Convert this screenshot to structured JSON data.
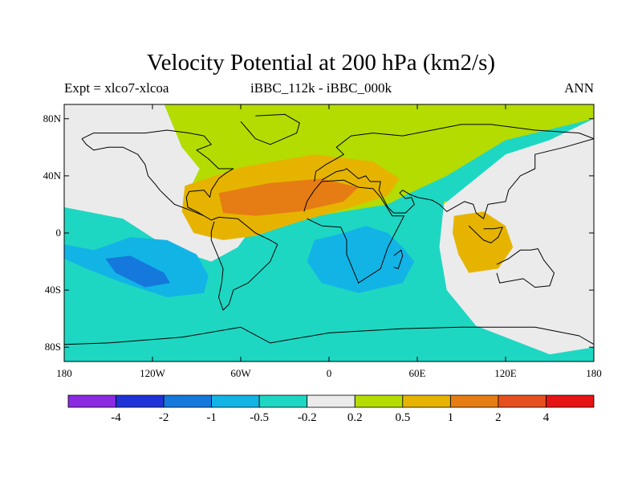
{
  "figure": {
    "title": "Velocity Potential at 200 hPa (km2/s)",
    "left_subtitle": "Expt = xlco7-xlcoa",
    "center_subtitle": "iBBC_112k - iBBC_000k",
    "right_subtitle": "ANN"
  },
  "axes": {
    "y_ticks": [
      {
        "label": "80N",
        "lat": 80
      },
      {
        "label": "40N",
        "lat": 40
      },
      {
        "label": "0",
        "lat": 0
      },
      {
        "label": "40S",
        "lat": -40
      },
      {
        "label": "80S",
        "lat": -80
      }
    ],
    "x_ticks": [
      {
        "label": "180",
        "lon": -180
      },
      {
        "label": "120W",
        "lon": -120
      },
      {
        "label": "60W",
        "lon": -60
      },
      {
        "label": "0",
        "lon": 0
      },
      {
        "label": "60E",
        "lon": 60
      },
      {
        "label": "120E",
        "lon": 120
      },
      {
        "label": "180",
        "lon": 180
      }
    ]
  },
  "colorbar": {
    "colors": [
      "#8a2be2",
      "#1e32d8",
      "#1478dc",
      "#12b4e6",
      "#1ed7c2",
      "#ebebeb",
      "#b4dc00",
      "#e6b400",
      "#e67d14",
      "#e6501e",
      "#e61414"
    ],
    "labels": [
      "-4",
      "-2",
      "-1",
      "-0.5",
      "-0.2",
      "0.2",
      "0.5",
      "1",
      "2",
      "4"
    ]
  },
  "map_data": {
    "bounds": {
      "lon_min": -180,
      "lon_max": 180,
      "lat_min": -90,
      "lat_max": 90
    },
    "regions": [
      {
        "name": "neutral-north-pacific",
        "level": 0.0,
        "color": "#ebebeb",
        "points": [
          [
            -180,
            90
          ],
          [
            -112,
            90
          ],
          [
            -100,
            60
          ],
          [
            -85,
            45
          ],
          [
            -70,
            30
          ],
          [
            -60,
            15
          ],
          [
            -55,
            0
          ],
          [
            -62,
            -10
          ],
          [
            -80,
            -20
          ],
          [
            -110,
            -10
          ],
          [
            -140,
            10
          ],
          [
            -180,
            18
          ]
        ]
      },
      {
        "name": "positive-atlantic-africa-asia",
        "level": 0.5,
        "color": "#b4dc00",
        "points": [
          [
            -112,
            90
          ],
          [
            180,
            90
          ],
          [
            180,
            80
          ],
          [
            120,
            65
          ],
          [
            80,
            40
          ],
          [
            55,
            28
          ],
          [
            40,
            20
          ],
          [
            10,
            15
          ],
          [
            -30,
            8
          ],
          [
            -60,
            0
          ],
          [
            -70,
            0
          ],
          [
            -90,
            2
          ],
          [
            -100,
            15
          ],
          [
            -95,
            30
          ],
          [
            -88,
            45
          ],
          [
            -100,
            60
          ]
        ]
      },
      {
        "name": "positive-maritime-continent",
        "level": 0.5,
        "color": "#b4dc00",
        "points": [
          [
            78,
            22
          ],
          [
            100,
            24
          ],
          [
            125,
            20
          ],
          [
            140,
            0
          ],
          [
            138,
            -18
          ],
          [
            125,
            -28
          ],
          [
            100,
            -32
          ],
          [
            85,
            -20
          ],
          [
            78,
            0
          ]
        ]
      },
      {
        "name": "neutral-west-pacific",
        "level": 0.0,
        "color": "#ebebeb",
        "points": [
          [
            180,
            80
          ],
          [
            180,
            -80
          ],
          [
            150,
            -85
          ],
          [
            100,
            -65
          ],
          [
            80,
            -40
          ],
          [
            75,
            -10
          ],
          [
            78,
            20
          ],
          [
            120,
            55
          ],
          [
            150,
            65
          ]
        ]
      },
      {
        "name": "negative-south-pacific",
        "level": -0.5,
        "color": "#12b4e6",
        "points": [
          [
            -180,
            -8
          ],
          [
            -160,
            -12
          ],
          [
            -135,
            -3
          ],
          [
            -110,
            -5
          ],
          [
            -90,
            -15
          ],
          [
            -82,
            -30
          ],
          [
            -85,
            -42
          ],
          [
            -110,
            -45
          ],
          [
            -140,
            -35
          ],
          [
            -165,
            -25
          ],
          [
            -180,
            -18
          ]
        ]
      },
      {
        "name": "negative-south-pacific-core",
        "level": -1.0,
        "color": "#1478dc",
        "points": [
          [
            -152,
            -18
          ],
          [
            -135,
            -16
          ],
          [
            -112,
            -28
          ],
          [
            -108,
            -35
          ],
          [
            -125,
            -38
          ],
          [
            -145,
            -28
          ]
        ]
      },
      {
        "name": "negative-africa",
        "level": -0.5,
        "color": "#12b4e6",
        "points": [
          [
            -10,
            -5
          ],
          [
            10,
            0
          ],
          [
            25,
            5
          ],
          [
            40,
            0
          ],
          [
            50,
            -10
          ],
          [
            58,
            -20
          ],
          [
            50,
            -35
          ],
          [
            20,
            -42
          ],
          [
            -5,
            -35
          ],
          [
            -15,
            -20
          ]
        ]
      },
      {
        "name": "positive-atlantic-core",
        "level": 1.0,
        "color": "#e6b400",
        "points": [
          [
            -98,
            33
          ],
          [
            -60,
            46
          ],
          [
            -10,
            55
          ],
          [
            30,
            50
          ],
          [
            48,
            38
          ],
          [
            40,
            26
          ],
          [
            15,
            18
          ],
          [
            -20,
            8
          ],
          [
            -50,
            -2
          ],
          [
            -72,
            -5
          ],
          [
            -92,
            0
          ],
          [
            -100,
            15
          ]
        ]
      },
      {
        "name": "positive-atlantic-core-inner",
        "level": 2.0,
        "color": "#e67d14",
        "points": [
          [
            -75,
            28
          ],
          [
            -40,
            35
          ],
          [
            -5,
            38
          ],
          [
            20,
            32
          ],
          [
            10,
            22
          ],
          [
            -20,
            15
          ],
          [
            -50,
            12
          ],
          [
            -72,
            14
          ]
        ]
      },
      {
        "name": "positive-indonesia-core",
        "level": 1.0,
        "color": "#e6b400",
        "points": [
          [
            85,
            12
          ],
          [
            105,
            15
          ],
          [
            120,
            5
          ],
          [
            125,
            -10
          ],
          [
            115,
            -25
          ],
          [
            95,
            -28
          ],
          [
            88,
            -15
          ],
          [
            84,
            0
          ]
        ]
      }
    ],
    "coastlines": [
      {
        "name": "north-america",
        "points": [
          [
            -168,
            66
          ],
          [
            -160,
            70
          ],
          [
            -140,
            70
          ],
          [
            -125,
            70
          ],
          [
            -110,
            72
          ],
          [
            -95,
            70
          ],
          [
            -85,
            68
          ],
          [
            -80,
            62
          ],
          [
            -90,
            58
          ],
          [
            -82,
            52
          ],
          [
            -75,
            45
          ],
          [
            -65,
            45
          ],
          [
            -70,
            42
          ],
          [
            -75,
            38
          ],
          [
            -80,
            30
          ],
          [
            -81,
            25
          ],
          [
            -85,
            30
          ],
          [
            -95,
            29
          ],
          [
            -97,
            25
          ],
          [
            -96,
            18
          ],
          [
            -90,
            15
          ],
          [
            -85,
            12
          ],
          [
            -80,
            9
          ],
          [
            -85,
            12
          ],
          [
            -92,
            15
          ],
          [
            -105,
            20
          ],
          [
            -110,
            25
          ],
          [
            -115,
            30
          ],
          [
            -118,
            34
          ],
          [
            -123,
            40
          ],
          [
            -125,
            48
          ],
          [
            -130,
            55
          ],
          [
            -140,
            60
          ],
          [
            -150,
            60
          ],
          [
            -160,
            58
          ],
          [
            -165,
            62
          ],
          [
            -168,
            66
          ]
        ]
      },
      {
        "name": "south-america",
        "points": [
          [
            -80,
            9
          ],
          [
            -75,
            11
          ],
          [
            -62,
            10
          ],
          [
            -50,
            0
          ],
          [
            -40,
            -5
          ],
          [
            -35,
            -8
          ],
          [
            -40,
            -20
          ],
          [
            -48,
            -28
          ],
          [
            -55,
            -35
          ],
          [
            -65,
            -40
          ],
          [
            -68,
            -50
          ],
          [
            -72,
            -54
          ],
          [
            -75,
            -45
          ],
          [
            -73,
            -35
          ],
          [
            -72,
            -25
          ],
          [
            -76,
            -15
          ],
          [
            -80,
            -5
          ],
          [
            -80,
            1
          ],
          [
            -78,
            8
          ]
        ]
      },
      {
        "name": "greenland",
        "points": [
          [
            -50,
            82
          ],
          [
            -30,
            83
          ],
          [
            -20,
            77
          ],
          [
            -22,
            70
          ],
          [
            -40,
            62
          ],
          [
            -50,
            66
          ],
          [
            -55,
            72
          ],
          [
            -60,
            78
          ]
        ]
      },
      {
        "name": "africa",
        "points": [
          [
            -17,
            15
          ],
          [
            -15,
            22
          ],
          [
            -10,
            30
          ],
          [
            -5,
            36
          ],
          [
            10,
            37
          ],
          [
            20,
            32
          ],
          [
            30,
            31
          ],
          [
            35,
            25
          ],
          [
            43,
            12
          ],
          [
            51,
            12
          ],
          [
            45,
            0
          ],
          [
            40,
            -10
          ],
          [
            35,
            -25
          ],
          [
            20,
            -35
          ],
          [
            18,
            -30
          ],
          [
            12,
            -15
          ],
          [
            12,
            -5
          ],
          [
            8,
            4
          ],
          [
            -5,
            5
          ],
          [
            -15,
            10
          ]
        ]
      },
      {
        "name": "eurasia",
        "points": [
          [
            -10,
            36
          ],
          [
            -9,
            43
          ],
          [
            -2,
            48
          ],
          [
            5,
            52
          ],
          [
            10,
            55
          ],
          [
            5,
            60
          ],
          [
            15,
            68
          ],
          [
            30,
            70
          ],
          [
            50,
            68
          ],
          [
            70,
            72
          ],
          [
            90,
            76
          ],
          [
            110,
            76
          ],
          [
            140,
            72
          ],
          [
            170,
            70
          ],
          [
            180,
            66
          ],
          [
            160,
            60
          ],
          [
            140,
            55
          ],
          [
            140,
            45
          ],
          [
            130,
            40
          ],
          [
            122,
            30
          ],
          [
            120,
            22
          ],
          [
            108,
            20
          ],
          [
            105,
            10
          ],
          [
            100,
            14
          ],
          [
            98,
            20
          ],
          [
            92,
            22
          ],
          [
            80,
            15
          ],
          [
            75,
            20
          ],
          [
            70,
            23
          ],
          [
            60,
            25
          ],
          [
            55,
            27
          ],
          [
            50,
            30
          ],
          [
            48,
            28
          ],
          [
            52,
            24
          ],
          [
            56,
            25
          ],
          [
            58,
            20
          ],
          [
            52,
            14
          ],
          [
            44,
            14
          ],
          [
            40,
            18
          ],
          [
            34,
            30
          ],
          [
            35,
            36
          ],
          [
            28,
            36
          ],
          [
            25,
            40
          ],
          [
            20,
            38
          ],
          [
            12,
            45
          ],
          [
            10,
            44
          ],
          [
            5,
            43
          ],
          [
            -5,
            37
          ]
        ]
      },
      {
        "name": "madagascar",
        "points": [
          [
            44,
            -16
          ],
          [
            49,
            -12
          ],
          [
            50,
            -16
          ],
          [
            47,
            -25
          ],
          [
            44,
            -24
          ]
        ]
      },
      {
        "name": "australia",
        "points": [
          [
            114,
            -22
          ],
          [
            122,
            -18
          ],
          [
            130,
            -12
          ],
          [
            137,
            -12
          ],
          [
            142,
            -11
          ],
          [
            146,
            -19
          ],
          [
            153,
            -28
          ],
          [
            150,
            -37
          ],
          [
            140,
            -38
          ],
          [
            132,
            -32
          ],
          [
            116,
            -35
          ],
          [
            114,
            -28
          ]
        ]
      },
      {
        "name": "borneo-sumatra",
        "points": [
          [
            95,
            5
          ],
          [
            100,
            0
          ],
          [
            105,
            -5
          ],
          [
            110,
            -7
          ],
          [
            115,
            -3
          ],
          [
            118,
            4
          ],
          [
            112,
            3
          ],
          [
            105,
            3
          ]
        ]
      },
      {
        "name": "antarctica",
        "points": [
          [
            -180,
            -78
          ],
          [
            -150,
            -77
          ],
          [
            -100,
            -73
          ],
          [
            -60,
            -66
          ],
          [
            -40,
            -77
          ],
          [
            0,
            -70
          ],
          [
            50,
            -67
          ],
          [
            90,
            -66
          ],
          [
            140,
            -66
          ],
          [
            170,
            -72
          ],
          [
            180,
            -78
          ]
        ]
      }
    ]
  }
}
